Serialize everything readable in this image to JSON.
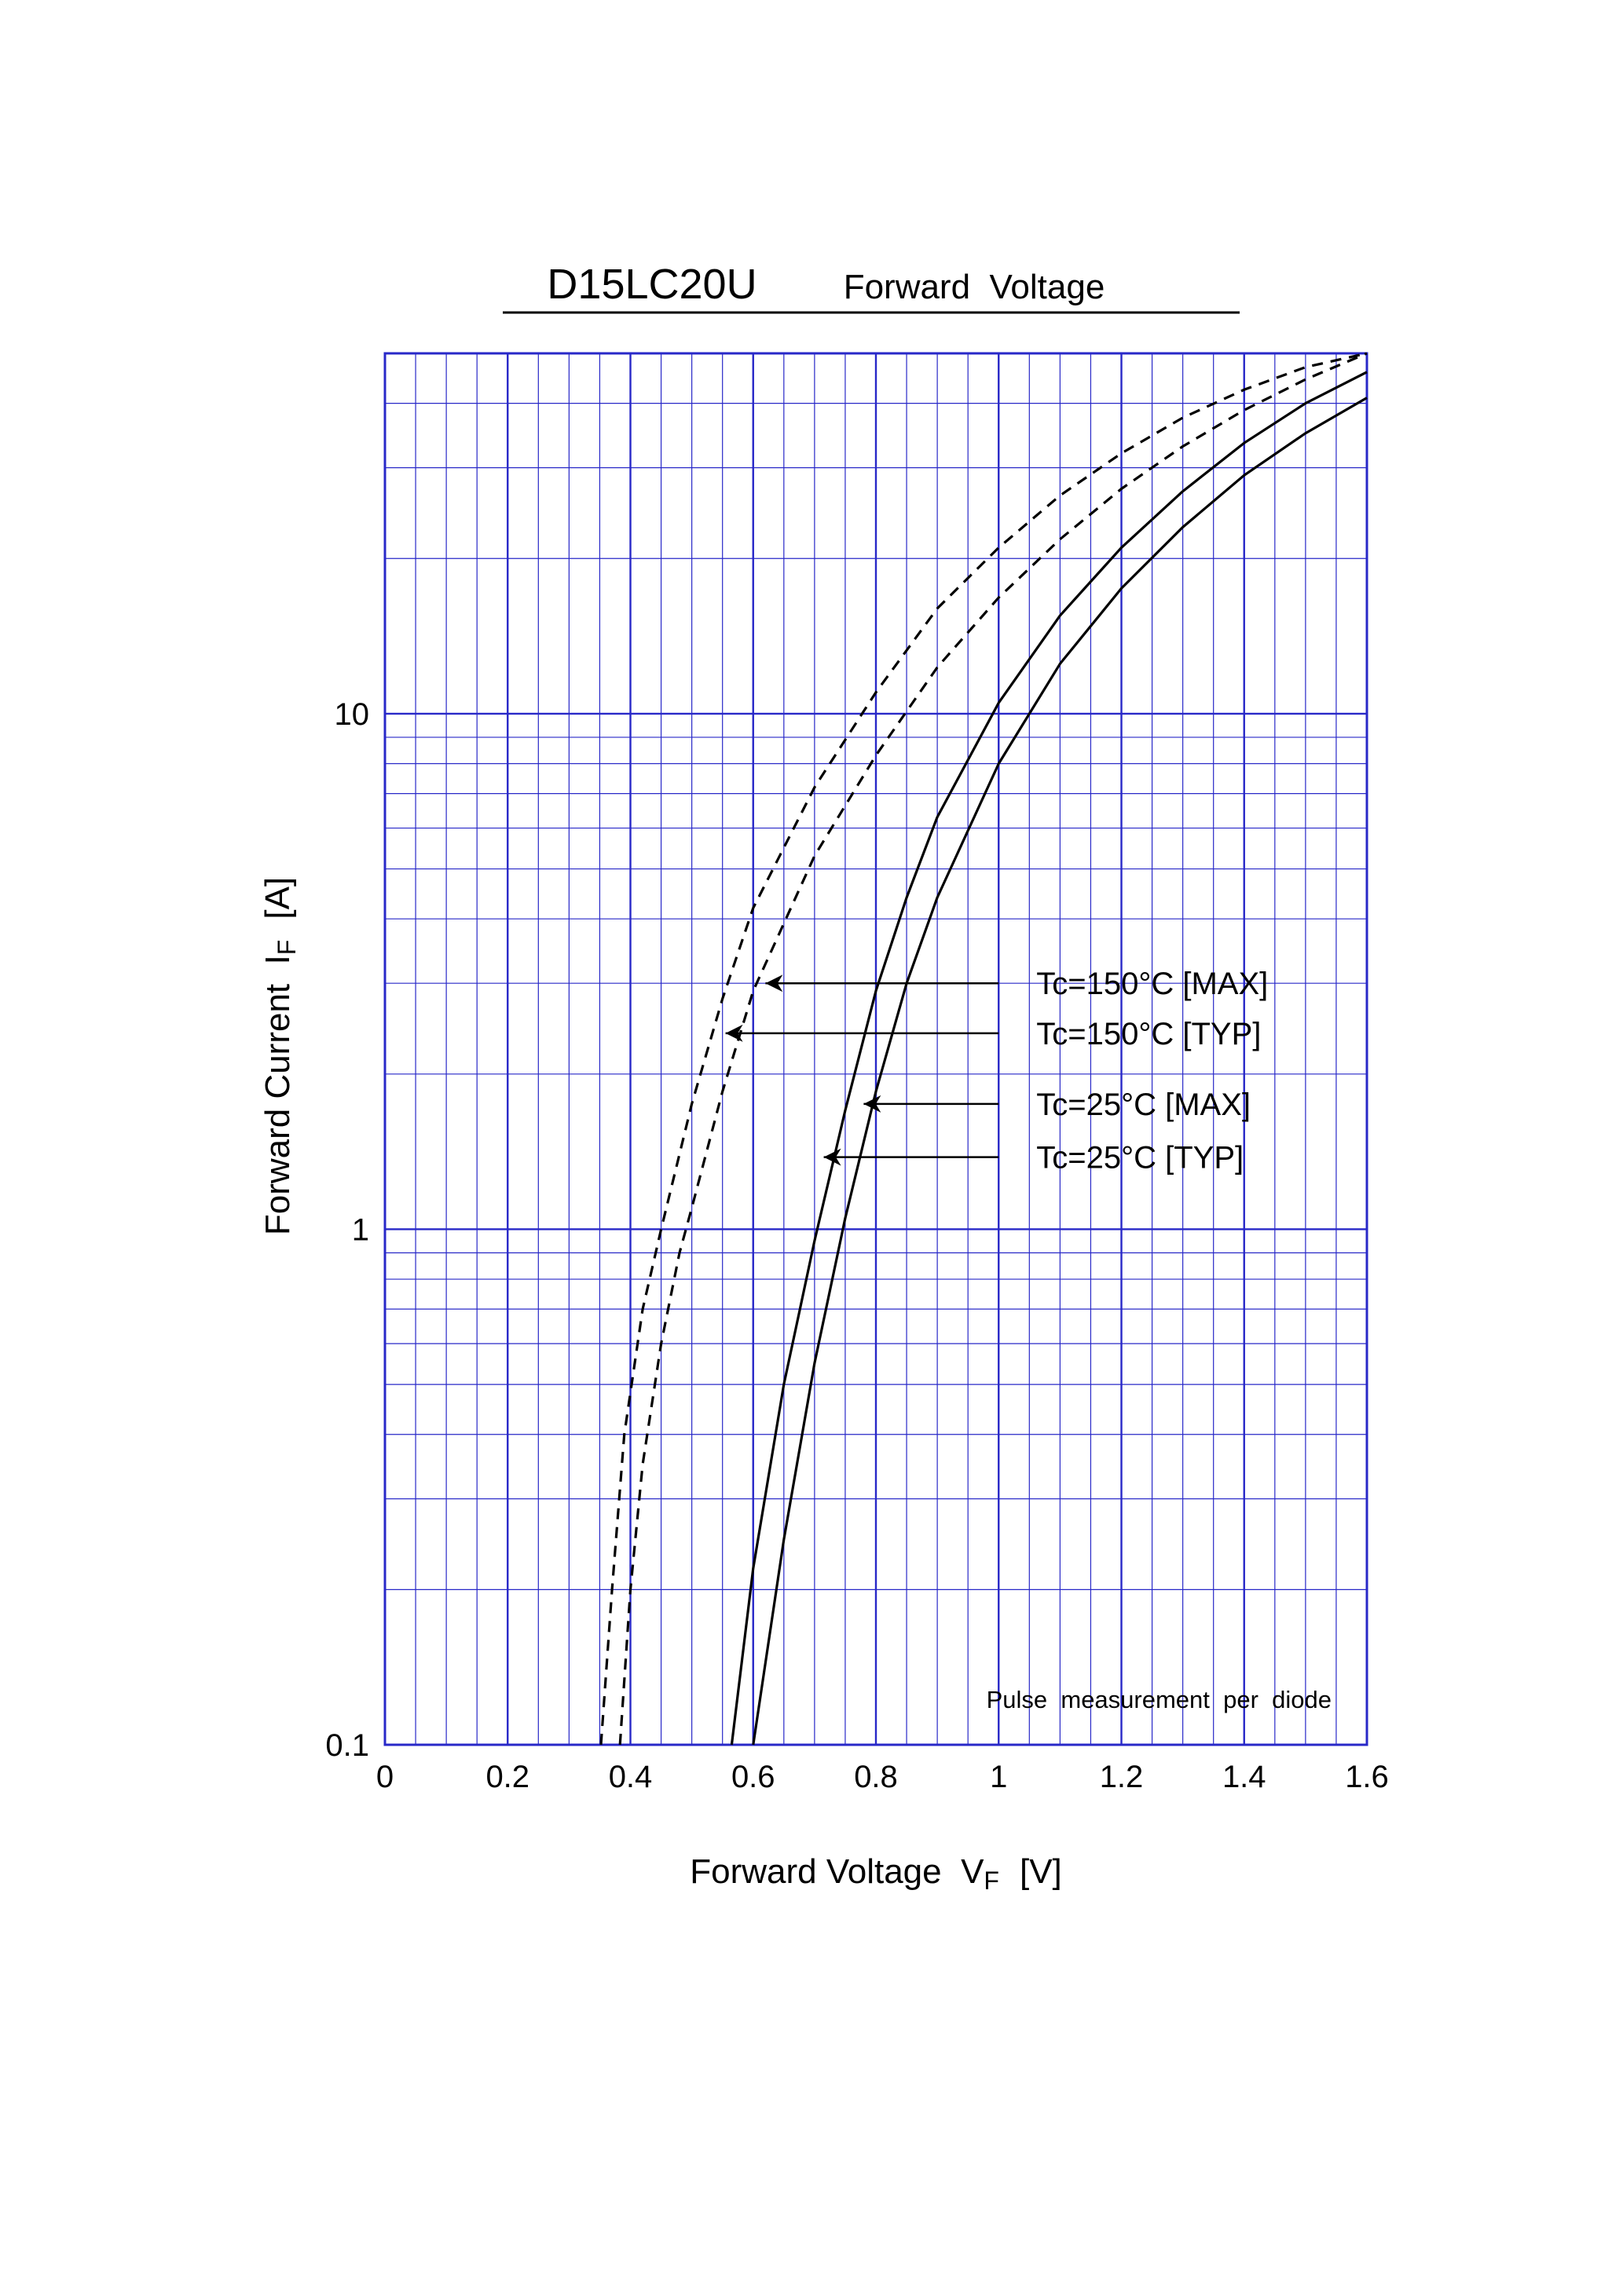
{
  "chart_data": {
    "type": "line",
    "title": "D15LC20U",
    "subtitle": "Forward  Voltage",
    "xlabel": {
      "main": "Forward Voltage  V",
      "sub": "F",
      "unit": "[V]"
    },
    "ylabel": {
      "main": "Forward Current  I",
      "sub": "F",
      "unit": "[A]"
    },
    "xlim": [
      0,
      1.6
    ],
    "ylim": [
      0.1,
      50
    ],
    "yscale": "log",
    "grid": true,
    "x_ticks": [
      0,
      0.2,
      0.4,
      0.6,
      0.8,
      1,
      1.2,
      1.4,
      1.6
    ],
    "x_tick_labels": [
      "0",
      "0.2",
      "0.4",
      "0.6",
      "0.8",
      "1",
      "1.2",
      "1.4",
      "1.6"
    ],
    "y_tick_labels": [
      {
        "value": 0.1,
        "label": "0.1"
      },
      {
        "value": 1,
        "label": "1"
      },
      {
        "value": 10,
        "label": "10"
      }
    ],
    "note": "Pulse  measurement  per  diode",
    "series": [
      {
        "name": "Tc=150°C [TYP]",
        "style": "dashed",
        "points": [
          [
            0.352,
            0.1
          ],
          [
            0.37,
            0.2
          ],
          [
            0.39,
            0.4
          ],
          [
            0.42,
            0.7
          ],
          [
            0.45,
            1.0
          ],
          [
            0.5,
            1.75
          ],
          [
            0.55,
            2.8
          ],
          [
            0.6,
            4.2
          ],
          [
            0.7,
            7.2
          ],
          [
            0.8,
            11.0
          ],
          [
            0.9,
            16.0
          ],
          [
            1.0,
            21.0
          ],
          [
            1.1,
            26.5
          ],
          [
            1.2,
            32.0
          ],
          [
            1.3,
            37.5
          ],
          [
            1.4,
            42.5
          ],
          [
            1.5,
            47.0
          ],
          [
            1.6,
            50.0
          ]
        ]
      },
      {
        "name": "Tc=150°C [MAX]",
        "style": "dashed",
        "points": [
          [
            0.383,
            0.1
          ],
          [
            0.4,
            0.2
          ],
          [
            0.42,
            0.35
          ],
          [
            0.45,
            0.6
          ],
          [
            0.48,
            0.9
          ],
          [
            0.5,
            1.1
          ],
          [
            0.55,
            1.85
          ],
          [
            0.6,
            2.9
          ],
          [
            0.7,
            5.3
          ],
          [
            0.8,
            8.3
          ],
          [
            0.9,
            12.3
          ],
          [
            1.0,
            16.8
          ],
          [
            1.1,
            21.8
          ],
          [
            1.2,
            27.3
          ],
          [
            1.3,
            33.0
          ],
          [
            1.4,
            38.8
          ],
          [
            1.5,
            44.5
          ],
          [
            1.6,
            50.0
          ]
        ]
      },
      {
        "name": "Tc=25°C [TYP]",
        "style": "solid",
        "points": [
          [
            0.565,
            0.1
          ],
          [
            0.6,
            0.22
          ],
          [
            0.65,
            0.5
          ],
          [
            0.7,
            0.95
          ],
          [
            0.75,
            1.7
          ],
          [
            0.8,
            2.9
          ],
          [
            0.85,
            4.4
          ],
          [
            0.9,
            6.3
          ],
          [
            1.0,
            10.5
          ],
          [
            1.1,
            15.5
          ],
          [
            1.2,
            21.0
          ],
          [
            1.3,
            27.0
          ],
          [
            1.4,
            33.5
          ],
          [
            1.5,
            40.0
          ],
          [
            1.6,
            46.0
          ]
        ]
      },
      {
        "name": "Tc=25°C [MAX]",
        "style": "solid",
        "points": [
          [
            0.6,
            0.1
          ],
          [
            0.65,
            0.25
          ],
          [
            0.7,
            0.55
          ],
          [
            0.75,
            1.05
          ],
          [
            0.8,
            1.85
          ],
          [
            0.85,
            3.0
          ],
          [
            0.9,
            4.4
          ],
          [
            1.0,
            8.0
          ],
          [
            1.1,
            12.5
          ],
          [
            1.2,
            17.5
          ],
          [
            1.3,
            23.0
          ],
          [
            1.4,
            29.0
          ],
          [
            1.5,
            35.0
          ],
          [
            1.6,
            41.0
          ]
        ]
      }
    ],
    "annotations": [
      {
        "label": "Tc=150°C [MAX]",
        "arrow_tip": [
          0.62,
          3.0
        ]
      },
      {
        "label": "Tc=150°C [TYP]",
        "arrow_tip": [
          0.555,
          2.4
        ]
      },
      {
        "label": "Tc=25°C [MAX]",
        "arrow_tip": [
          0.78,
          1.75
        ]
      },
      {
        "label": "Tc=25°C [TYP]",
        "arrow_tip": [
          0.715,
          1.38
        ]
      }
    ],
    "colors": {
      "grid": "#2828c8",
      "curve": "#000000"
    }
  }
}
